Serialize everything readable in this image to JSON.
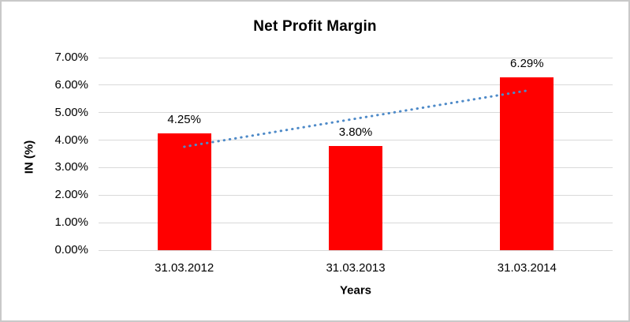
{
  "frame": {
    "background": "#FFFFFF",
    "border_color": "#C9C9C9"
  },
  "chart_data": {
    "type": "bar",
    "title": "Net Profit Margin",
    "xlabel": "Years",
    "ylabel": "IN (%)",
    "categories": [
      "31.03.2012",
      "31.03.2013",
      "31.03.2014"
    ],
    "values": [
      4.25,
      3.8,
      6.29
    ],
    "data_labels": [
      "4.25%",
      "3.80%",
      "6.29%"
    ],
    "ylim": [
      0,
      7
    ],
    "ytick_labels": [
      "0.00%",
      "1.00%",
      "2.00%",
      "3.00%",
      "4.00%",
      "5.00%",
      "6.00%",
      "7.00%"
    ],
    "grid": true,
    "legend": "none",
    "bar_color": "#FF0000",
    "gridline_color": "#D9D9D9",
    "text_color": "#000000",
    "trendline": {
      "type": "linear",
      "style": "dotted",
      "color": "#4E8AC8",
      "start_value": 3.76,
      "end_value": 5.8
    }
  }
}
